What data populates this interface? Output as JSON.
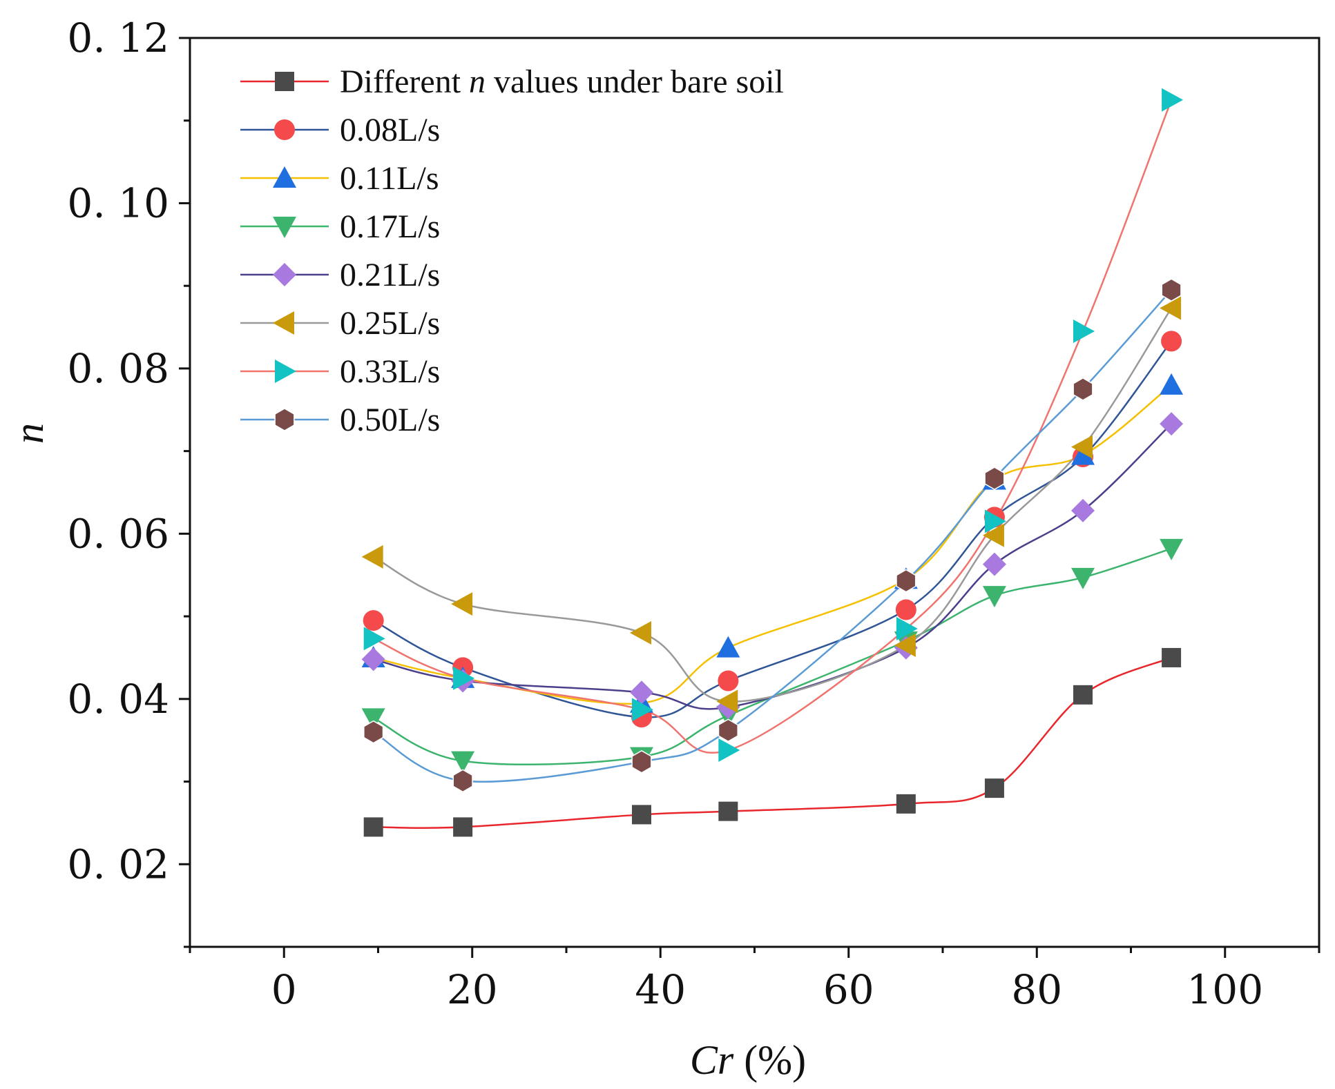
{
  "chart_data": {
    "type": "line",
    "xlabel": {
      "italic": "Cr",
      "rest": " (%)"
    },
    "ylabel": "n",
    "xlim": [
      -10,
      110
    ],
    "ylim": [
      0.01,
      0.12
    ],
    "xticks": [
      0,
      20,
      40,
      60,
      80,
      100
    ],
    "xtick_labels": [
      "0",
      "20",
      "40",
      "60",
      "80",
      "100"
    ],
    "yticks": [
      0.02,
      0.04,
      0.06,
      0.08,
      0.1,
      0.12
    ],
    "ytick_labels": [
      "0. 02",
      "0. 04",
      "0. 06",
      "0. 08",
      "0. 10",
      "0. 12"
    ],
    "legend_position": "top-left",
    "x": [
      9.5,
      19,
      38,
      47.2,
      66.1,
      75.5,
      84.9,
      94.3
    ],
    "series": [
      {
        "name": "Different n values under bare soil",
        "legend_parts": [
          "Different ",
          "n",
          " values under bare soil"
        ],
        "marker": "square",
        "marker_color": "#4a4a4a",
        "line_color": "#e8262b",
        "values": [
          0.0245,
          0.0245,
          0.026,
          0.0264,
          0.0273,
          0.0292,
          0.0405,
          0.045
        ]
      },
      {
        "name": "0.08L/s",
        "marker": "circle",
        "marker_color": "#f44a4c",
        "line_color": "#2f5597",
        "values": [
          0.0495,
          0.0438,
          0.0378,
          0.0422,
          0.0508,
          0.062,
          0.0693,
          0.0833
        ]
      },
      {
        "name": "0.11L/s",
        "marker": "triangle-up",
        "marker_color": "#1f6fe0",
        "line_color": "#f5c000",
        "values": [
          0.045,
          0.0425,
          0.0395,
          0.0462,
          0.0545,
          0.0665,
          0.0695,
          0.078
        ]
      },
      {
        "name": "0.17L/s",
        "marker": "triangle-down",
        "marker_color": "#3cb46e",
        "line_color": "#3cb46e",
        "values": [
          0.0377,
          0.0325,
          0.033,
          0.038,
          0.047,
          0.0525,
          0.0547,
          0.0582
        ]
      },
      {
        "name": "0.21L/s",
        "marker": "diamond",
        "marker_color": "#a879df",
        "line_color": "#4b3f8c",
        "values": [
          0.0448,
          0.0422,
          0.0408,
          0.039,
          0.0462,
          0.0563,
          0.0628,
          0.0733
        ]
      },
      {
        "name": "0.25L/s",
        "marker": "triangle-left",
        "marker_color": "#c99b0c",
        "line_color": "#999999",
        "values": [
          0.0572,
          0.0515,
          0.048,
          0.0397,
          0.0465,
          0.0598,
          0.0705,
          0.0873
        ]
      },
      {
        "name": "0.33L/s",
        "marker": "triangle-right",
        "marker_color": "#13c2c2",
        "line_color": "#f0736e",
        "values": [
          0.0473,
          0.0425,
          0.0387,
          0.0338,
          0.0485,
          0.0615,
          0.0845,
          0.1125
        ]
      },
      {
        "name": "0.50L/s",
        "marker": "hexagon",
        "marker_color": "#7a4a48",
        "line_color": "#5b9bd5",
        "values": [
          0.036,
          0.0301,
          0.0324,
          0.0362,
          0.0543,
          0.0667,
          0.0775,
          0.0895
        ]
      }
    ]
  }
}
